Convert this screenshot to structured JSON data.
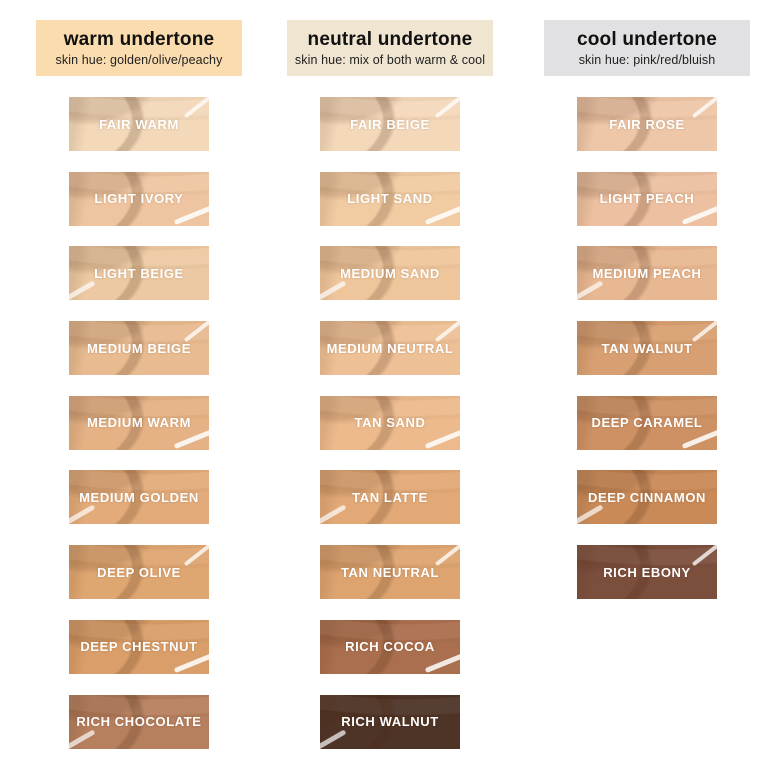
{
  "page": {
    "background": "#ffffff"
  },
  "columns": [
    {
      "id": "warm",
      "header": {
        "title": "warm undertone",
        "subtitle": "skin hue: golden/olive/peachy",
        "bg": "#fbdcae",
        "text_color": "#111111"
      },
      "swatches": [
        {
          "name": "FAIR WARM",
          "color": "#f3d8b9"
        },
        {
          "name": "LIGHT IVORY",
          "color": "#eec5a0"
        },
        {
          "name": "LIGHT BEIGE",
          "color": "#ecc9a2"
        },
        {
          "name": "MEDIUM BEIGE",
          "color": "#e8bb90"
        },
        {
          "name": "MEDIUM WARM",
          "color": "#e5b285"
        },
        {
          "name": "MEDIUM GOLDEN",
          "color": "#e3ab7a"
        },
        {
          "name": "DEEP OLIVE",
          "color": "#dea671"
        },
        {
          "name": "DEEP CHESTNUT",
          "color": "#d99e69"
        },
        {
          "name": "RICH CHOCOLATE",
          "color": "#b67f5e"
        }
      ]
    },
    {
      "id": "neutral",
      "header": {
        "title": "neutral undertone",
        "subtitle": "skin hue: mix of both warm & cool",
        "bg": "#efe5d1",
        "text_color": "#111111"
      },
      "swatches": [
        {
          "name": "FAIR BEIGE",
          "color": "#f4d8ba"
        },
        {
          "name": "LIGHT SAND",
          "color": "#f1cba2"
        },
        {
          "name": "MEDIUM SAND",
          "color": "#efc69c"
        },
        {
          "name": "MEDIUM NEUTRAL",
          "color": "#eec096"
        },
        {
          "name": "TAN SAND",
          "color": "#ecba8c"
        },
        {
          "name": "TAN LATTE",
          "color": "#e2a977"
        },
        {
          "name": "TAN NEUTRAL",
          "color": "#dda470"
        },
        {
          "name": "RICH COCOA",
          "color": "#aa6f4e"
        },
        {
          "name": "RICH WALNUT",
          "color": "#4e3427"
        }
      ]
    },
    {
      "id": "cool",
      "header": {
        "title": "cool undertone",
        "subtitle": "skin hue: pink/red/bluish",
        "bg": "#e1e1e3",
        "text_color": "#111111"
      },
      "swatches": [
        {
          "name": "FAIR ROSE",
          "color": "#eec6a8"
        },
        {
          "name": "LIGHT PEACH",
          "color": "#ecc0a0"
        },
        {
          "name": "MEDIUM PEACH",
          "color": "#e8b892"
        },
        {
          "name": "TAN WALNUT",
          "color": "#d8a072"
        },
        {
          "name": "DEEP CARAMEL",
          "color": "#cd9164"
        },
        {
          "name": "DEEP CINNAMON",
          "color": "#c98a58"
        },
        {
          "name": "RICH EBONY",
          "color": "#7c4f3d"
        }
      ]
    }
  ]
}
